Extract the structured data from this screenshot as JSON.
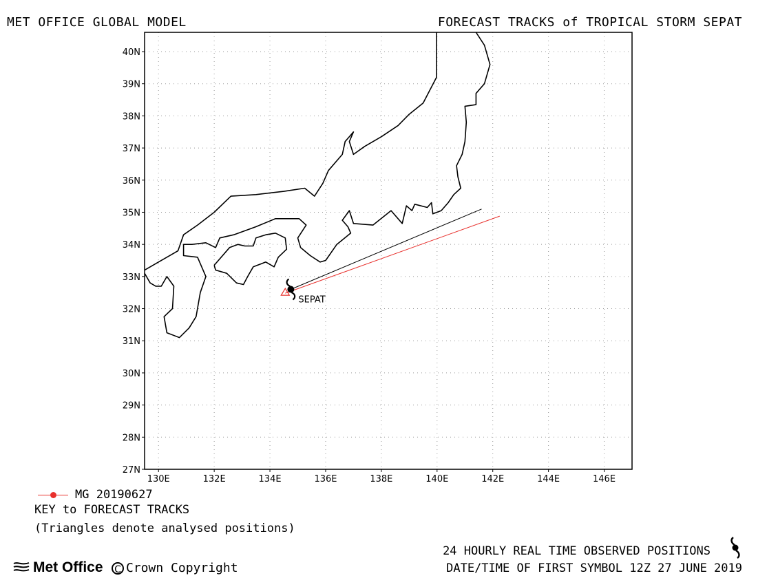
{
  "header": {
    "title_left": "MET OFFICE GLOBAL MODEL",
    "title_right": "FORECAST TRACKS of TROPICAL STORM SEPAT"
  },
  "map": {
    "lon_range": [
      129.5,
      147.0
    ],
    "lat_range": [
      27,
      40.6
    ],
    "lon_ticks": [
      130,
      132,
      134,
      136,
      138,
      140,
      142,
      144,
      146
    ],
    "lon_tick_labels": [
      "130E",
      "132E",
      "134E",
      "136E",
      "138E",
      "140E",
      "142E",
      "144E",
      "146E"
    ],
    "lat_ticks": [
      27,
      28,
      29,
      30,
      31,
      32,
      33,
      34,
      35,
      36,
      37,
      38,
      39,
      40
    ],
    "lat_tick_labels": [
      "27N",
      "28N",
      "29N",
      "30N",
      "31N",
      "32N",
      "33N",
      "34N",
      "35N",
      "36N",
      "37N",
      "38N",
      "39N",
      "40N"
    ],
    "grid": "dotted",
    "coastline_color": "#000000",
    "coastlines": [
      [
        [
          139.98,
          40.6
        ],
        [
          139.98,
          39.2
        ],
        [
          139.5,
          38.4
        ],
        [
          139.0,
          38.05
        ],
        [
          138.6,
          37.7
        ],
        [
          138.0,
          37.35
        ],
        [
          137.4,
          37.05
        ],
        [
          137.0,
          36.8
        ],
        [
          136.85,
          37.2
        ],
        [
          137.0,
          37.5
        ],
        [
          136.7,
          37.2
        ],
        [
          136.6,
          36.8
        ],
        [
          136.1,
          36.3
        ],
        [
          135.9,
          35.9
        ],
        [
          135.6,
          35.5
        ],
        [
          135.25,
          35.75
        ],
        [
          134.5,
          35.65
        ],
        [
          133.5,
          35.55
        ],
        [
          132.6,
          35.5
        ],
        [
          132.0,
          35.0
        ],
        [
          131.4,
          34.6
        ],
        [
          130.9,
          34.3
        ],
        [
          130.7,
          33.8
        ],
        [
          130.3,
          33.6
        ],
        [
          129.5,
          33.2
        ]
      ],
      [
        [
          141.4,
          40.6
        ],
        [
          141.7,
          40.2
        ],
        [
          141.9,
          39.6
        ],
        [
          141.7,
          39.0
        ],
        [
          141.4,
          38.7
        ],
        [
          141.4,
          38.35
        ],
        [
          141.0,
          38.3
        ],
        [
          141.05,
          37.8
        ],
        [
          141.0,
          37.2
        ],
        [
          140.9,
          36.8
        ],
        [
          140.7,
          36.45
        ],
        [
          140.75,
          36.1
        ],
        [
          140.85,
          35.75
        ],
        [
          140.6,
          35.55
        ],
        [
          140.4,
          35.3
        ],
        [
          140.15,
          35.05
        ],
        [
          139.85,
          34.95
        ],
        [
          139.8,
          35.3
        ],
        [
          139.65,
          35.15
        ],
        [
          139.2,
          35.25
        ],
        [
          139.1,
          35.05
        ],
        [
          138.9,
          35.2
        ],
        [
          138.75,
          34.65
        ],
        [
          138.35,
          35.05
        ],
        [
          137.7,
          34.6
        ],
        [
          137.0,
          34.65
        ],
        [
          136.85,
          35.05
        ],
        [
          136.6,
          34.75
        ],
        [
          136.8,
          34.55
        ],
        [
          136.9,
          34.35
        ],
        [
          136.4,
          34.0
        ],
        [
          136.0,
          33.5
        ],
        [
          135.8,
          33.45
        ],
        [
          135.45,
          33.65
        ],
        [
          135.1,
          33.9
        ],
        [
          135.0,
          34.2
        ],
        [
          135.3,
          34.6
        ],
        [
          135.05,
          34.8
        ],
        [
          134.2,
          34.8
        ],
        [
          133.5,
          34.55
        ],
        [
          132.7,
          34.3
        ],
        [
          132.2,
          34.2
        ],
        [
          132.05,
          33.9
        ],
        [
          131.7,
          34.05
        ],
        [
          131.2,
          34.0
        ],
        [
          130.9,
          34.0
        ],
        [
          130.9,
          33.65
        ],
        [
          131.4,
          33.6
        ],
        [
          131.7,
          33.0
        ],
        [
          131.5,
          32.5
        ],
        [
          131.35,
          31.75
        ],
        [
          131.1,
          31.4
        ],
        [
          130.75,
          31.1
        ],
        [
          130.3,
          31.25
        ],
        [
          130.2,
          31.75
        ],
        [
          130.5,
          32.0
        ],
        [
          130.55,
          32.7
        ],
        [
          130.3,
          33.0
        ],
        [
          130.1,
          32.7
        ],
        [
          129.9,
          32.7
        ],
        [
          129.7,
          32.8
        ],
        [
          129.5,
          33.1
        ]
      ],
      [
        [
          132.0,
          33.35
        ],
        [
          132.55,
          33.9
        ],
        [
          132.85,
          34.0
        ],
        [
          133.1,
          33.95
        ],
        [
          133.4,
          33.95
        ],
        [
          133.5,
          34.2
        ],
        [
          133.85,
          34.3
        ],
        [
          134.2,
          34.35
        ],
        [
          134.55,
          34.2
        ],
        [
          134.6,
          33.85
        ],
        [
          134.3,
          33.6
        ],
        [
          134.15,
          33.3
        ],
        [
          133.85,
          33.45
        ],
        [
          133.4,
          33.3
        ],
        [
          133.2,
          33.0
        ],
        [
          133.05,
          32.75
        ],
        [
          132.8,
          32.8
        ],
        [
          132.45,
          33.1
        ],
        [
          132.05,
          33.2
        ],
        [
          132.0,
          33.35
        ]
      ]
    ],
    "forecast_tracks": [
      {
        "color": "#000000",
        "points": [
          [
            134.75,
            32.6
          ],
          [
            141.6,
            35.1
          ]
        ]
      },
      {
        "color": "#e8302c",
        "points": [
          [
            134.55,
            32.48
          ],
          [
            142.25,
            34.88
          ]
        ]
      }
    ],
    "analysed_position": {
      "lon": 134.55,
      "lat": 32.48
    },
    "storm": {
      "name": "SEPAT",
      "lon": 134.75,
      "lat": 32.6,
      "icon": "tropical-storm-symbol"
    }
  },
  "legend": {
    "entries": [
      {
        "label": "MG 20190627",
        "color": "#e8302c",
        "marker": "filled-circle"
      }
    ],
    "key_title": "KEY to FORECAST TRACKS",
    "key_note": "(Triangles denote analysed positions)"
  },
  "footer": {
    "observed_positions": "24 HOURLY REAL TIME OBSERVED POSITIONS",
    "observed_icon": "tropical-storm-symbol",
    "first_symbol": "DATE/TIME OF FIRST SYMBOL 12Z 27 JUNE 2019",
    "brand": "Met Office",
    "brand_icon": "met-office-logo-icon",
    "copyright": "Crown Copyright"
  }
}
